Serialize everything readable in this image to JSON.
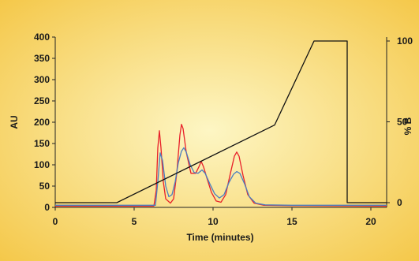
{
  "chart_data": {
    "type": "line",
    "title": "",
    "xlabel": "Time (minutes)",
    "ylabel": "AU",
    "y2label": "% B",
    "xlim": [
      0,
      21
    ],
    "ylim": [
      0,
      400
    ],
    "y2lim": [
      0,
      100
    ],
    "x_ticks": [
      "0",
      "5",
      "10",
      "15",
      "20"
    ],
    "y_ticks": [
      "0",
      "50",
      "100",
      "150",
      "200",
      "250",
      "300",
      "350",
      "400"
    ],
    "y2_ticks": [
      "0",
      "50",
      "100"
    ],
    "grid": false,
    "legend": "none",
    "colors": {
      "background_center": "#fdf6c4",
      "background_edge": "#f4c542",
      "red_trace": "#e8202a",
      "blue_trace": "#4a7fc0",
      "gradient_trace": "#111111"
    },
    "series": [
      {
        "axis": "y",
        "color": "#e8202a",
        "points": [
          [
            0,
            3
          ],
          [
            6.25,
            3
          ],
          [
            6.4,
            40
          ],
          [
            6.5,
            140
          ],
          [
            6.6,
            180
          ],
          [
            6.7,
            140
          ],
          [
            6.85,
            60
          ],
          [
            7.0,
            20
          ],
          [
            7.3,
            10
          ],
          [
            7.5,
            20
          ],
          [
            7.7,
            80
          ],
          [
            7.9,
            170
          ],
          [
            8.0,
            195
          ],
          [
            8.1,
            185
          ],
          [
            8.3,
            130
          ],
          [
            8.6,
            80
          ],
          [
            8.9,
            80
          ],
          [
            9.1,
            95
          ],
          [
            9.25,
            108
          ],
          [
            9.4,
            95
          ],
          [
            9.6,
            70
          ],
          [
            9.9,
            35
          ],
          [
            10.2,
            15
          ],
          [
            10.5,
            12
          ],
          [
            10.8,
            30
          ],
          [
            11.1,
            80
          ],
          [
            11.35,
            120
          ],
          [
            11.5,
            130
          ],
          [
            11.65,
            120
          ],
          [
            11.9,
            75
          ],
          [
            12.2,
            30
          ],
          [
            12.6,
            10
          ],
          [
            13.2,
            5
          ],
          [
            15,
            4
          ],
          [
            21,
            3
          ]
        ]
      },
      {
        "axis": "y",
        "color": "#4a7fc0",
        "points": [
          [
            0,
            5
          ],
          [
            6.35,
            5
          ],
          [
            6.5,
            60
          ],
          [
            6.65,
            128
          ],
          [
            6.8,
            110
          ],
          [
            7.0,
            50
          ],
          [
            7.2,
            25
          ],
          [
            7.4,
            30
          ],
          [
            7.6,
            60
          ],
          [
            7.8,
            105
          ],
          [
            8.0,
            132
          ],
          [
            8.15,
            140
          ],
          [
            8.3,
            130
          ],
          [
            8.55,
            100
          ],
          [
            8.8,
            82
          ],
          [
            9.05,
            80
          ],
          [
            9.3,
            88
          ],
          [
            9.5,
            80
          ],
          [
            9.8,
            55
          ],
          [
            10.1,
            32
          ],
          [
            10.4,
            22
          ],
          [
            10.7,
            30
          ],
          [
            11.0,
            58
          ],
          [
            11.3,
            78
          ],
          [
            11.5,
            84
          ],
          [
            11.7,
            80
          ],
          [
            12.0,
            55
          ],
          [
            12.3,
            25
          ],
          [
            12.7,
            10
          ],
          [
            13.3,
            6
          ],
          [
            15,
            5
          ],
          [
            21,
            5
          ]
        ]
      },
      {
        "axis": "y2",
        "color": "#111111",
        "points": [
          [
            0,
            0
          ],
          [
            3.9,
            0
          ],
          [
            13.9,
            48
          ],
          [
            16.4,
            100
          ],
          [
            18.5,
            100
          ],
          [
            18.5,
            0
          ],
          [
            21,
            0
          ]
        ]
      }
    ]
  }
}
